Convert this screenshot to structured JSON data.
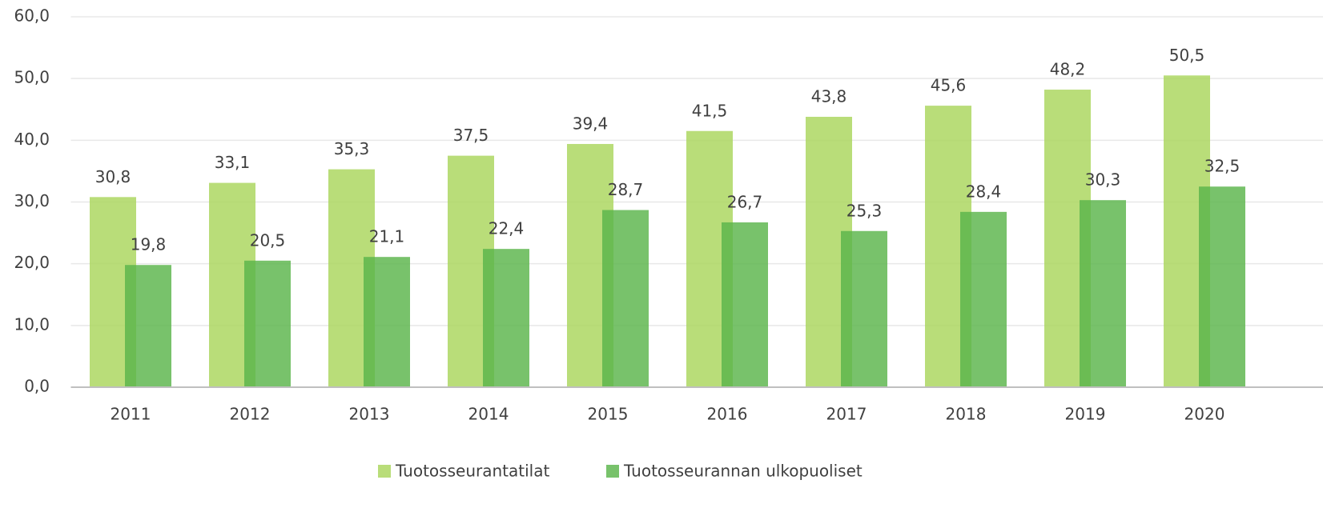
{
  "chart_data": {
    "type": "bar",
    "categories": [
      "2011",
      "2012",
      "2013",
      "2014",
      "2015",
      "2016",
      "2017",
      "2018",
      "2019",
      "2020"
    ],
    "series": [
      {
        "name": "Tuotosseurantatilat",
        "color": "#a9d65c",
        "values": [
          30.8,
          33.1,
          35.3,
          37.5,
          39.4,
          41.5,
          43.8,
          45.6,
          48.2,
          50.5
        ],
        "value_labels": [
          "30,8",
          "33,1",
          "35,3",
          "37,5",
          "39,4",
          "41,5",
          "43,8",
          "45,6",
          "48,2",
          "50,5"
        ]
      },
      {
        "name": "Tuotosseurannan ulkopuoliset",
        "color": "#5ab54a",
        "values": [
          19.8,
          20.5,
          21.1,
          22.4,
          28.7,
          26.7,
          25.3,
          28.4,
          30.3,
          32.5
        ],
        "value_labels": [
          "19,8",
          "20,5",
          "21,1",
          "22,4",
          "28,7",
          "26,7",
          "25,3",
          "28,4",
          "30,3",
          "32,5"
        ]
      }
    ],
    "ylim": [
      0,
      60
    ],
    "yticks": [
      {
        "value": 0,
        "label": "0,0"
      },
      {
        "value": 10,
        "label": "10,0"
      },
      {
        "value": 20,
        "label": "20,0"
      },
      {
        "value": 30,
        "label": "30,0"
      },
      {
        "value": 40,
        "label": "40,0"
      },
      {
        "value": 50,
        "label": "50,0"
      },
      {
        "value": 60,
        "label": "60,0"
      }
    ],
    "grid": true,
    "legend": "bottom"
  }
}
